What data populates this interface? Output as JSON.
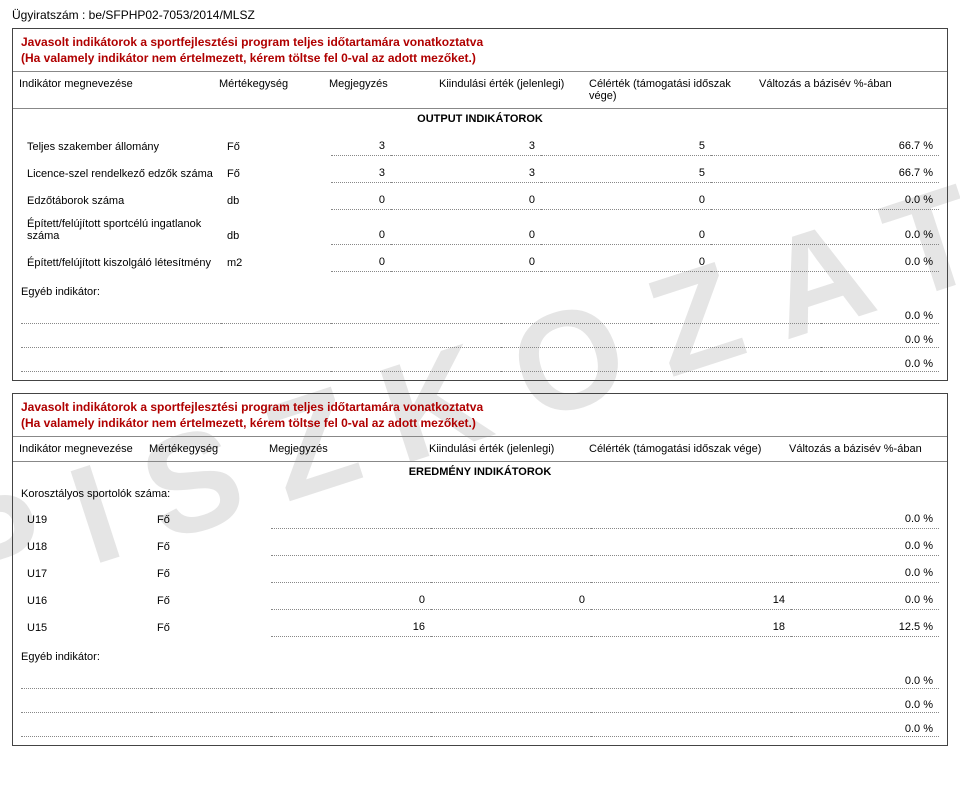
{
  "watermark": "PISZKOZAT",
  "case_no": "Ügyiratszám : be/SFPHP02-7053/2014/MLSZ",
  "box1": {
    "title": "Javasolt indikátorok a sportfejlesztési program teljes időtartamára vonatkoztatva",
    "subtitle": "(Ha valamely indikátor nem értelmezett, kérem töltse fel 0-val az adott mezőket.)",
    "headers": {
      "name": "Indikátor megnevezése",
      "unit": "Mértékegység",
      "note": "Megjegyzés",
      "start": "Kiindulási érték (jelenlegi)",
      "target": "Célérték (támogatási időszak vége)",
      "change": "Változás a bázisév %-ában"
    },
    "section": "OUTPUT INDIKÁTOROK",
    "rows": [
      {
        "name": "Teljes szakember állomány",
        "unit": "Fő",
        "f": "3",
        "start": "3",
        "target": "5",
        "change": "66.7  %"
      },
      {
        "name": "Licence-szel rendelkező edzők száma",
        "unit": "Fő",
        "f": "3",
        "start": "3",
        "target": "5",
        "change": "66.7  %"
      },
      {
        "name": "Edzőtáborok száma",
        "unit": "db",
        "f": "0",
        "start": "0",
        "target": "0",
        "change": "0.0  %"
      },
      {
        "name": "Épített/felújított sportcélú ingatlanok száma",
        "unit": "db",
        "f": "0",
        "start": "0",
        "target": "0",
        "change": "0.0  %"
      },
      {
        "name": "Épített/felújított kiszolgáló létesítmény",
        "unit": "m2",
        "f": "0",
        "start": "0",
        "target": "0",
        "change": "0.0  %"
      }
    ],
    "egyeb_label": "Egyéb indikátor:",
    "egyeb_rows": [
      {
        "change": "0.0  %"
      },
      {
        "change": "0.0  %"
      },
      {
        "change": "0.0  %"
      }
    ]
  },
  "box2": {
    "title": "Javasolt indikátorok a sportfejlesztési program teljes időtartamára vonatkoztatva",
    "subtitle": "(Ha valamely indikátor nem értelmezett, kérem töltse fel 0-val az adott mezőket.)",
    "headers": {
      "name": "Indikátor megnevezése",
      "unit": "Mértékegység",
      "note": "Megjegyzés",
      "start": "Kiindulási érték (jelenlegi)",
      "target": "Célérték (támogatási időszak vége)",
      "change": "Változás a bázisév %-ában"
    },
    "section": "EREDMÉNY INDIKÁTOROK",
    "koroszt": "Korosztályos sportolók száma:",
    "rows": [
      {
        "name": "U19",
        "unit": "Fő",
        "note": "",
        "start": "",
        "target": "",
        "change": "0.0  %"
      },
      {
        "name": "U18",
        "unit": "Fő",
        "note": "",
        "start": "",
        "target": "",
        "change": "0.0  %"
      },
      {
        "name": "U17",
        "unit": "Fő",
        "note": "",
        "start": "",
        "target": "",
        "change": "0.0  %"
      },
      {
        "name": "U16",
        "unit": "Fő",
        "note": "0",
        "start": "0",
        "target": "14",
        "change": "0.0  %"
      },
      {
        "name": "U15",
        "unit": "Fő",
        "note": "16",
        "start": "",
        "target": "18",
        "change": "12.5  %"
      }
    ],
    "egyeb_label": "Egyéb indikátor:",
    "egyeb_rows": [
      {
        "change": "0.0  %"
      },
      {
        "change": "0.0  %"
      },
      {
        "change": "0.0  %"
      }
    ]
  }
}
